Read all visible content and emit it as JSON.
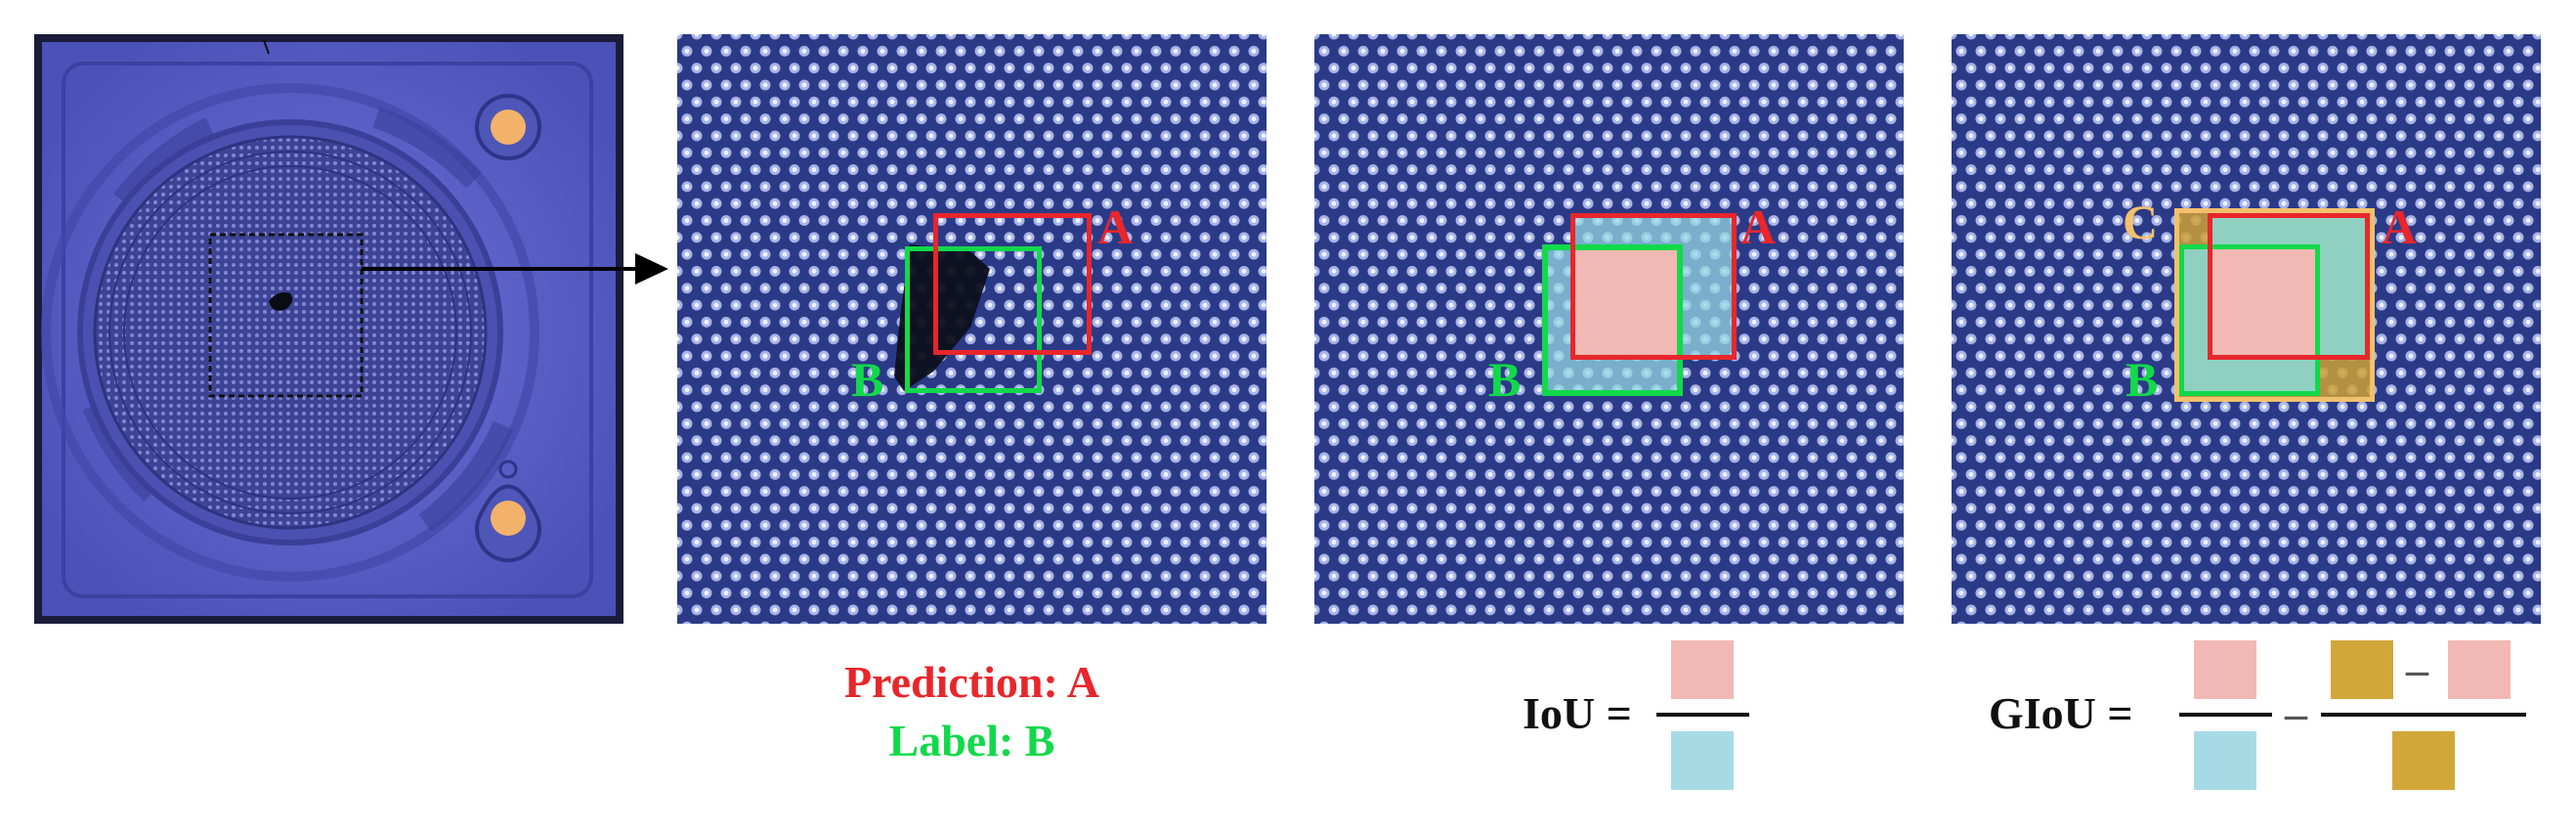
{
  "colors": {
    "prediction": "#e8262b",
    "label": "#12d94a",
    "enclosing": "#f3c16a",
    "mesh_bg": "#2b3a86",
    "chip_bg": "#5a62c8",
    "intersection_tile": "#f2b8b4",
    "union_tile": "#a6dbe6",
    "enclosing_tile": "#d2a73a"
  },
  "panels": {
    "chip": {
      "name": "chip-micrograph"
    },
    "prediction": {
      "box_a_label": "A",
      "box_b_label": "B"
    },
    "iou": {
      "box_a_label": "A",
      "box_b_label": "B"
    },
    "giou": {
      "box_a_label": "A",
      "box_b_label": "B",
      "box_c_label": "C"
    }
  },
  "captions": {
    "prediction": "Prediction: A",
    "label": "Label: B",
    "iou_lhs": "IoU =",
    "giou_lhs": "GIoU =",
    "minus": "–"
  }
}
